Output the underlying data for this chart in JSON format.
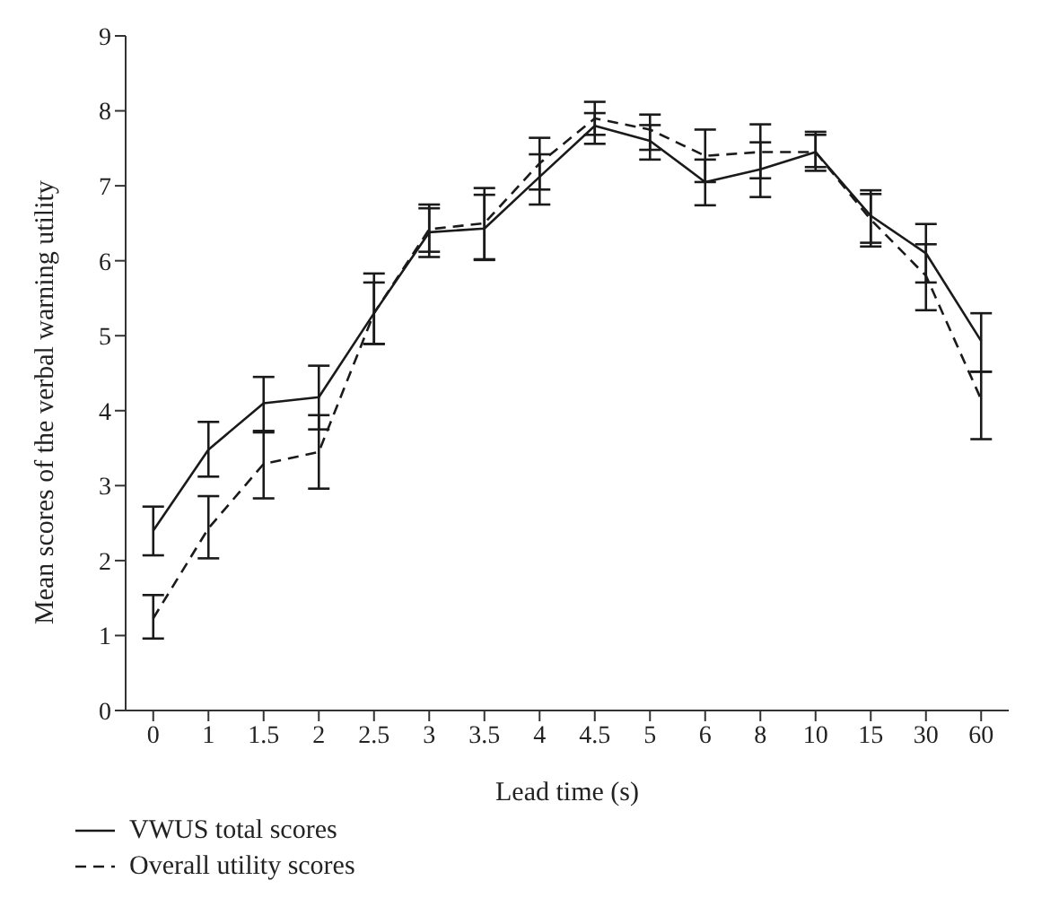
{
  "chart_data": {
    "type": "line",
    "xlabel": "Lead time (s)",
    "ylabel": "Mean scores of the verbal warning utility",
    "categories": [
      "0",
      "1",
      "1.5",
      "2",
      "2.5",
      "3",
      "3.5",
      "4",
      "4.5",
      "5",
      "6",
      "8",
      "10",
      "15",
      "30",
      "60"
    ],
    "series": [
      {
        "name": "VWUS total scores",
        "color": "#1a1a1a",
        "line_style": "solid",
        "values": [
          2.4,
          3.48,
          4.1,
          4.18,
          5.3,
          6.38,
          6.43,
          7.12,
          7.8,
          7.6,
          7.05,
          7.22,
          7.45,
          6.6,
          6.1,
          4.93
        ],
        "errors": [
          [
            2.07,
            2.72
          ],
          [
            3.12,
            3.85
          ],
          [
            3.73,
            4.45
          ],
          [
            3.75,
            4.6
          ],
          [
            4.89,
            5.83
          ],
          [
            6.05,
            6.75
          ],
          [
            6.01,
            6.88
          ],
          [
            6.75,
            7.42
          ],
          [
            7.56,
            7.97
          ],
          [
            7.35,
            7.81
          ],
          [
            6.74,
            7.35
          ],
          [
            6.85,
            7.58
          ],
          [
            7.2,
            7.72
          ],
          [
            6.24,
            6.94
          ],
          [
            5.71,
            6.49
          ],
          [
            4.52,
            5.3
          ]
        ]
      },
      {
        "name": "Overall utility scores",
        "color": "#1a1a1a",
        "line_style": "dashed",
        "values": [
          1.23,
          2.43,
          3.29,
          3.45,
          5.3,
          6.42,
          6.5,
          7.3,
          7.9,
          7.75,
          7.4,
          7.45,
          7.45,
          6.55,
          5.8,
          4.15
        ],
        "errors": [
          [
            0.96,
            1.54
          ],
          [
            2.03,
            2.86
          ],
          [
            2.83,
            3.71
          ],
          [
            2.96,
            3.94
          ],
          [
            4.89,
            5.71
          ],
          [
            6.12,
            6.7
          ],
          [
            6.02,
            6.97
          ],
          [
            6.95,
            7.64
          ],
          [
            7.68,
            8.12
          ],
          [
            7.48,
            7.95
          ],
          [
            7.05,
            7.75
          ],
          [
            7.1,
            7.82
          ],
          [
            7.25,
            7.68
          ],
          [
            6.19,
            6.89
          ],
          [
            5.34,
            6.22
          ],
          [
            3.62,
            4.52
          ]
        ]
      }
    ],
    "ylim": [
      0,
      9
    ],
    "yticks": [
      0,
      1,
      2,
      3,
      4,
      5,
      6,
      7,
      8,
      9
    ],
    "grid": false,
    "legend": "bottom left",
    "marker": "none"
  }
}
